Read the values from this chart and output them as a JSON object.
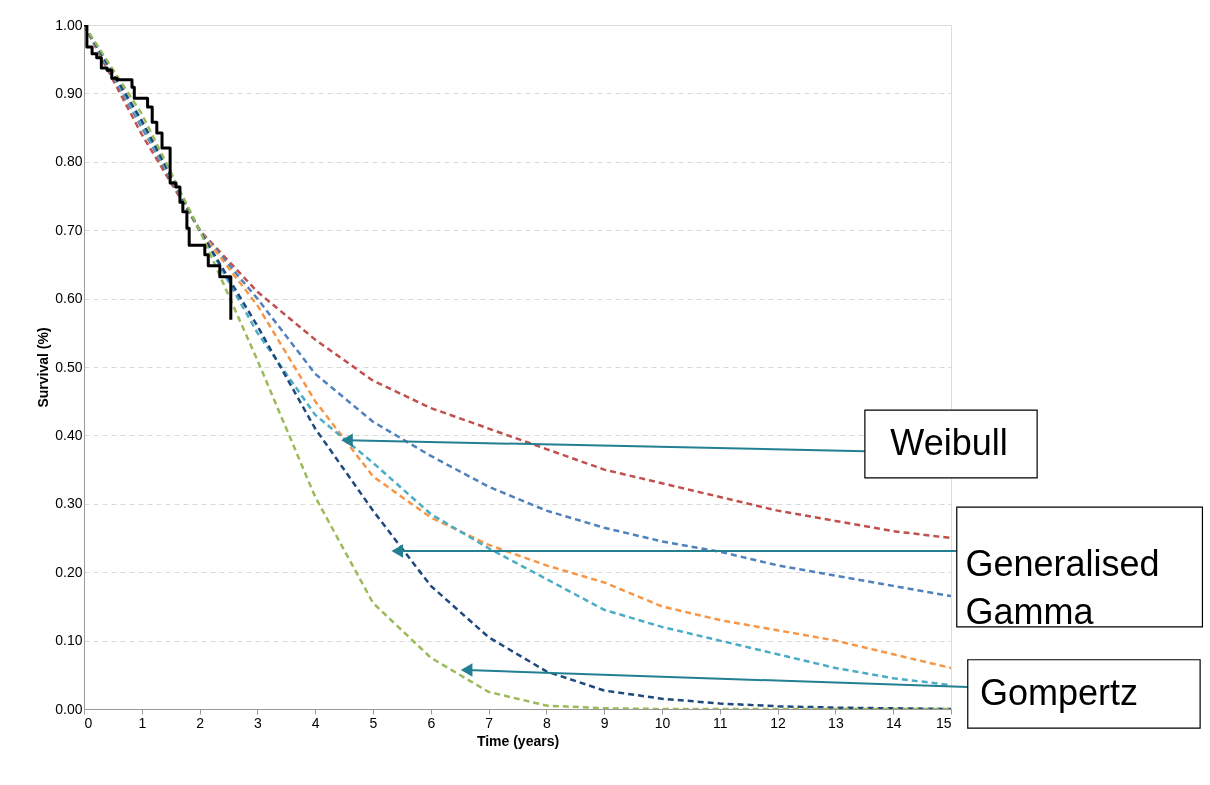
{
  "chart_data": {
    "type": "line",
    "xlabel": "Time (years)",
    "ylabel": "Survival (%)",
    "xlim": [
      0,
      15
    ],
    "ylim": [
      0,
      1
    ],
    "xticks": [
      0,
      1,
      2,
      3,
      4,
      5,
      6,
      7,
      8,
      9,
      10,
      11,
      12,
      13,
      14,
      15
    ],
    "yticks": [
      {
        "value": 0,
        "label": "0.00"
      },
      {
        "value": 0.1,
        "label": "0.10"
      },
      {
        "value": 0.2,
        "label": "0.20"
      },
      {
        "value": 0.3,
        "label": "0.30"
      },
      {
        "value": 0.4,
        "label": "0.40"
      },
      {
        "value": 0.5,
        "label": "0.50"
      },
      {
        "value": 0.6,
        "label": "0.60"
      },
      {
        "value": 0.7,
        "label": "0.70"
      },
      {
        "value": 0.8,
        "label": "0.80"
      },
      {
        "value": 0.9,
        "label": "0.90"
      },
      {
        "value": 1,
        "label": "1.00"
      }
    ],
    "grid": "y",
    "series": [
      {
        "line_style": "dashed",
        "color": "#c0504d",
        "x": [
          0,
          1,
          2,
          3,
          4,
          5,
          6,
          7,
          8,
          9,
          10,
          11,
          12,
          13,
          14,
          15
        ],
        "values": [
          1.0,
          0.84,
          0.7,
          0.61,
          0.54,
          0.48,
          0.44,
          0.41,
          0.38,
          0.35,
          0.33,
          0.31,
          0.29,
          0.275,
          0.26,
          0.25
        ]
      },
      {
        "line_style": "dashed",
        "color": "#4f81bd",
        "x": [
          0,
          1,
          2,
          3,
          4,
          5,
          6,
          7,
          8,
          9,
          10,
          11,
          12,
          13,
          14,
          15
        ],
        "values": [
          1.0,
          0.85,
          0.7,
          0.6,
          0.49,
          0.42,
          0.37,
          0.325,
          0.29,
          0.265,
          0.245,
          0.23,
          0.21,
          0.195,
          0.18,
          0.165
        ]
      },
      {
        "line_style": "dashed",
        "color": "#f79646",
        "x": [
          0,
          1,
          2,
          3,
          4,
          5,
          6,
          7,
          8,
          9,
          10,
          11,
          12,
          13,
          14,
          15
        ],
        "values": [
          1.0,
          0.855,
          0.7,
          0.59,
          0.45,
          0.34,
          0.28,
          0.24,
          0.21,
          0.185,
          0.15,
          0.13,
          0.115,
          0.1,
          0.08,
          0.06
        ]
      },
      {
        "line_style": "dashed",
        "color": "#4bacc6",
        "x": [
          0,
          1,
          2,
          3,
          4,
          5,
          6,
          7,
          8,
          9,
          10,
          11,
          12,
          13,
          14,
          15
        ],
        "values": [
          1.0,
          0.855,
          0.7,
          0.55,
          0.43,
          0.36,
          0.285,
          0.235,
          0.19,
          0.145,
          0.12,
          0.1,
          0.08,
          0.06,
          0.045,
          0.035
        ]
      },
      {
        "line_style": "dashed",
        "color": "#1f497d",
        "x": [
          0,
          1,
          2,
          3,
          4,
          5,
          6,
          7,
          8,
          9,
          10,
          11,
          12,
          13,
          14,
          15
        ],
        "values": [
          1.0,
          0.86,
          0.7,
          0.56,
          0.41,
          0.29,
          0.18,
          0.105,
          0.055,
          0.027,
          0.015,
          0.008,
          0.004,
          0.002,
          0.001,
          0.0
        ]
      },
      {
        "line_style": "dashed",
        "color": "#9bbb59",
        "x": [
          0,
          1,
          2,
          3,
          4,
          5,
          6,
          7,
          8,
          9,
          10,
          11,
          12,
          13,
          14,
          15
        ],
        "values": [
          1.0,
          0.87,
          0.7,
          0.51,
          0.31,
          0.155,
          0.075,
          0.025,
          0.005,
          0.001,
          0.0,
          0.0,
          0.0,
          0.0,
          0.0,
          0.0
        ]
      },
      {
        "type": "step",
        "line_style": "solid",
        "color": "#000000",
        "x": [
          0,
          0.05,
          0.14,
          0.22,
          0.3,
          0.4,
          0.48,
          0.57,
          0.83,
          0.87,
          1.1,
          1.18,
          1.26,
          1.35,
          1.49,
          1.59,
          1.66,
          1.71,
          1.78,
          1.82,
          2.09,
          2.15,
          2.35,
          2.54,
          2.54
        ],
        "values": [
          1.0,
          0.968,
          0.958,
          0.952,
          0.937,
          0.934,
          0.922,
          0.92,
          0.909,
          0.893,
          0.88,
          0.858,
          0.842,
          0.82,
          0.769,
          0.763,
          0.741,
          0.727,
          0.703,
          0.678,
          0.664,
          0.648,
          0.632,
          0.61,
          0.569
        ]
      }
    ],
    "annotations": [
      {
        "text": "Weibull",
        "x": 4.55,
        "y": 0.393
      },
      {
        "text": "Generalised Gamma",
        "x": 5.42,
        "y": 0.231
      },
      {
        "text": "Gompertz",
        "x": 6.62,
        "y": 0.057
      }
    ]
  }
}
